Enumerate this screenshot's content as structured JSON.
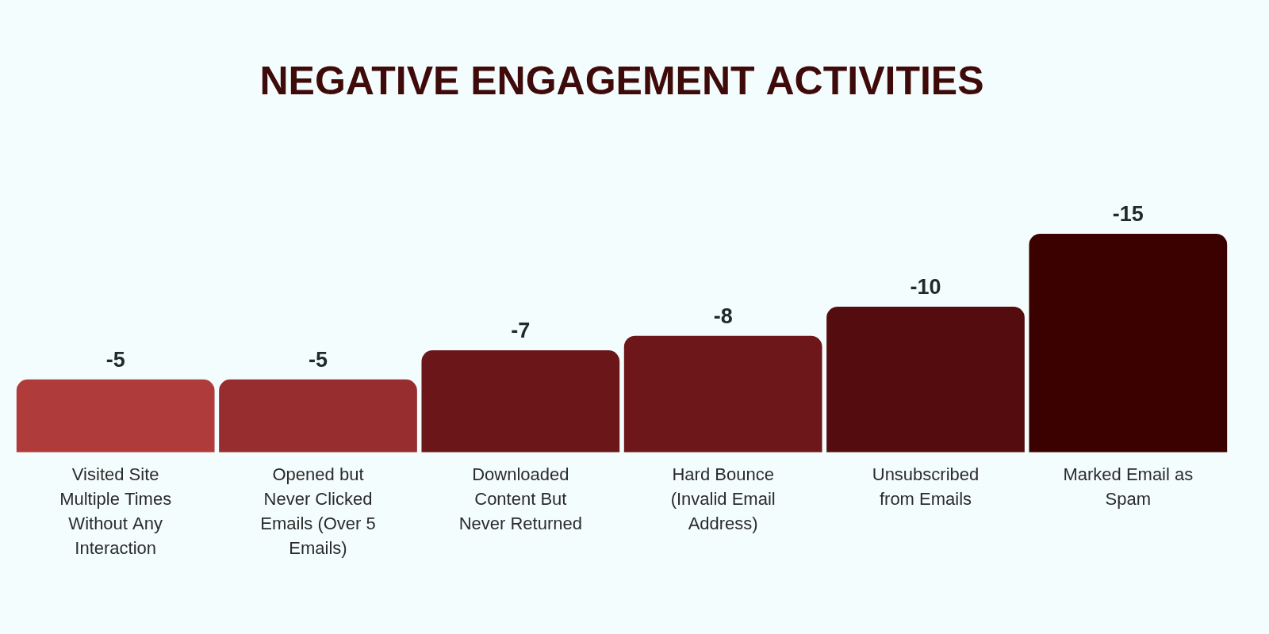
{
  "chart_data": {
    "type": "bar",
    "title": "NEGATIVE ENGAGEMENT ACTIVITIES",
    "categories": [
      "Visited Site Multiple Times Without Any Interaction",
      "Opened but Never Clicked Emails (Over 5 Emails)",
      "Downloaded Content But Never Returned",
      "Hard Bounce (Invalid Email Address)",
      "Unsubscribed from Emails",
      "Marked Email as Spam"
    ],
    "values": [
      -5,
      -5,
      -7,
      -8,
      -10,
      -15
    ],
    "colors": [
      "#b03b3b",
      "#972d2f",
      "#6b171a",
      "#6d171a",
      "#550c0f",
      "#3b0000"
    ],
    "ylim": [
      0,
      -15
    ],
    "grid": false,
    "tick_labels": "x",
    "data_labels": true
  }
}
